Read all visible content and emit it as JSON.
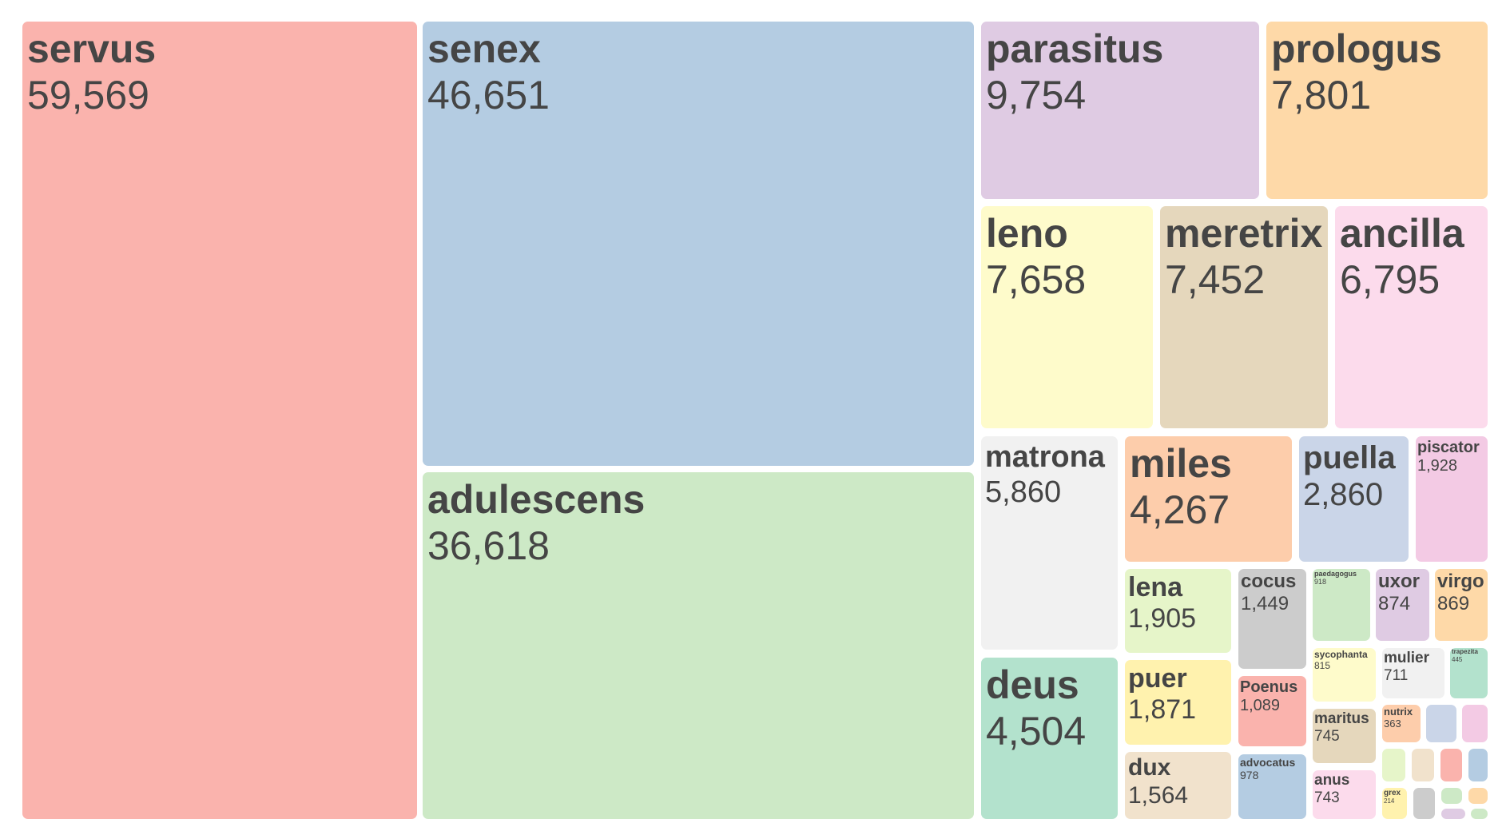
{
  "chart_data": {
    "type": "treemap",
    "title": "",
    "items": [
      {
        "name": "servus",
        "value": 59569,
        "value_label": "59,569",
        "color": "#fab3ad"
      },
      {
        "name": "senex",
        "value": 46651,
        "value_label": "46,651",
        "color": "#b4cce2"
      },
      {
        "name": "adulescens",
        "value": 36618,
        "value_label": "36,618",
        "color": "#cde9c6"
      },
      {
        "name": "parasitus",
        "value": 9754,
        "value_label": "9,754",
        "color": "#dfcbe3"
      },
      {
        "name": "prologus",
        "value": 7801,
        "value_label": "7,801",
        "color": "#fed9a8"
      },
      {
        "name": "leno",
        "value": 7658,
        "value_label": "7,658",
        "color": "#fefbcb"
      },
      {
        "name": "meretrix",
        "value": 7452,
        "value_label": "7,452",
        "color": "#e5d7bc"
      },
      {
        "name": "ancilla",
        "value": 6795,
        "value_label": "6,795",
        "color": "#fcdbec"
      },
      {
        "name": "matrona",
        "value": 5860,
        "value_label": "5,860",
        "color": "#f1f1f1"
      },
      {
        "name": "deus",
        "value": 4504,
        "value_label": "4,504",
        "color": "#b3e2cd"
      },
      {
        "name": "miles",
        "value": 4267,
        "value_label": "4,267",
        "color": "#fdcdab"
      },
      {
        "name": "puella",
        "value": 2860,
        "value_label": "2,860",
        "color": "#cad5e8"
      },
      {
        "name": "piscator",
        "value": 1928,
        "value_label": "1,928",
        "color": "#f3cae4"
      },
      {
        "name": "lena",
        "value": 1905,
        "value_label": "1,905",
        "color": "#e6f5c9"
      },
      {
        "name": "puer",
        "value": 1871,
        "value_label": "1,871",
        "color": "#fff2ae"
      },
      {
        "name": "dux",
        "value": 1564,
        "value_label": "1,564",
        "color": "#f1e2cc"
      },
      {
        "name": "cocus",
        "value": 1449,
        "value_label": "1,449",
        "color": "#cccccc"
      },
      {
        "name": "Poenus",
        "value": 1089,
        "value_label": "1,089",
        "color": "#fab3ad"
      },
      {
        "name": "advocatus",
        "value": 978,
        "value_label": "978",
        "color": "#b4cce2"
      },
      {
        "name": "paedagogus",
        "value": 918,
        "value_label": "918",
        "color": "#cde9c6"
      },
      {
        "name": "uxor",
        "value": 874,
        "value_label": "874",
        "color": "#dfcbe3"
      },
      {
        "name": "virgo",
        "value": 869,
        "value_label": "869",
        "color": "#fed9a8"
      },
      {
        "name": "sycophanta",
        "value": 815,
        "value_label": "815",
        "color": "#fefbcb"
      },
      {
        "name": "maritus",
        "value": 745,
        "value_label": "745",
        "color": "#e5d7bc"
      },
      {
        "name": "anus",
        "value": 743,
        "value_label": "743",
        "color": "#fcdbec"
      },
      {
        "name": "mulier",
        "value": 711,
        "value_label": "711",
        "color": "#f1f1f1"
      },
      {
        "name": "trapezita",
        "value": 445,
        "value_label": "445",
        "color": "#b3e2cd"
      },
      {
        "name": "nutrix",
        "value": 363,
        "value_label": "363",
        "color": "#fdcdab"
      },
      {
        "name": "",
        "value": null,
        "value_label": "",
        "color": "#cad5e8"
      },
      {
        "name": "",
        "value": null,
        "value_label": "",
        "color": "#f3cae4"
      },
      {
        "name": "",
        "value": null,
        "value_label": "",
        "color": "#e6f5c9"
      },
      {
        "name": "",
        "value": null,
        "value_label": "",
        "color": "#f1e2cc"
      },
      {
        "name": "",
        "value": null,
        "value_label": "",
        "color": "#fab3ad"
      },
      {
        "name": "",
        "value": null,
        "value_label": "",
        "color": "#b4cce2"
      },
      {
        "name": "grex",
        "value": 214,
        "value_label": "214",
        "color": "#fff2ae"
      },
      {
        "name": "",
        "value": null,
        "value_label": "",
        "color": "#cccccc"
      },
      {
        "name": "",
        "value": null,
        "value_label": "",
        "color": "#cde9c6"
      },
      {
        "name": "",
        "value": null,
        "value_label": "",
        "color": "#fed9a8"
      },
      {
        "name": "",
        "value": null,
        "value_label": "",
        "color": "#dfcbe3"
      },
      {
        "name": "",
        "value": null,
        "value_label": "",
        "color": "#cde9c6"
      }
    ]
  }
}
